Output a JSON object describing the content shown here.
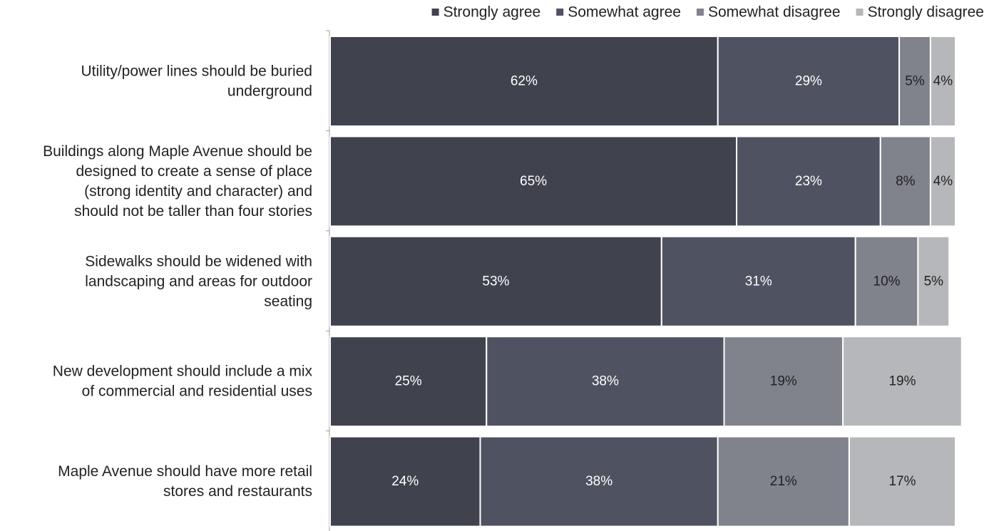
{
  "chart_data": {
    "type": "bar",
    "orientation": "horizontal",
    "stacked": true,
    "percent_labels": true,
    "categories": [
      "Utility/power lines should be buried underground",
      "Buildings along Maple Avenue should be designed to create a sense of place (strong identity and character) and should not be taller than four stories",
      "Sidewalks should be widened with landscaping and areas for outdoor seating",
      "New development should include a mix of commercial and residential uses",
      "Maple Avenue should have more retail stores and restaurants"
    ],
    "category_lines": [
      [
        "Utility/power lines should be buried",
        "underground"
      ],
      [
        "Buildings along Maple Avenue should be",
        "designed to create a sense of place",
        "(strong identity and character) and",
        "should not be taller than four stories"
      ],
      [
        "Sidewalks should be widened with",
        "landscaping and areas for outdoor",
        "seating"
      ],
      [
        "New development should include a mix",
        "of commercial and residential uses"
      ],
      [
        "Maple Avenue should have more retail",
        "stores and restaurants"
      ]
    ],
    "series": [
      {
        "name": "Strongly agree",
        "values": [
          62,
          65,
          53,
          25,
          24
        ],
        "color": "#40434e",
        "label_color": "#ffffff"
      },
      {
        "name": "Somewhat agree",
        "values": [
          29,
          23,
          31,
          38,
          38
        ],
        "color": "#4f5361",
        "label_color": "#ffffff"
      },
      {
        "name": "Somewhat disagree",
        "values": [
          5,
          8,
          10,
          19,
          21
        ],
        "color": "#80838c",
        "label_color": "#222222"
      },
      {
        "name": "Strongly disagree",
        "values": [
          4,
          4,
          5,
          19,
          17
        ],
        "color": "#b6b7ba",
        "label_color": "#222222"
      }
    ],
    "legend_position": "top-right",
    "grid": false,
    "xlim": [
      0,
      100
    ]
  }
}
